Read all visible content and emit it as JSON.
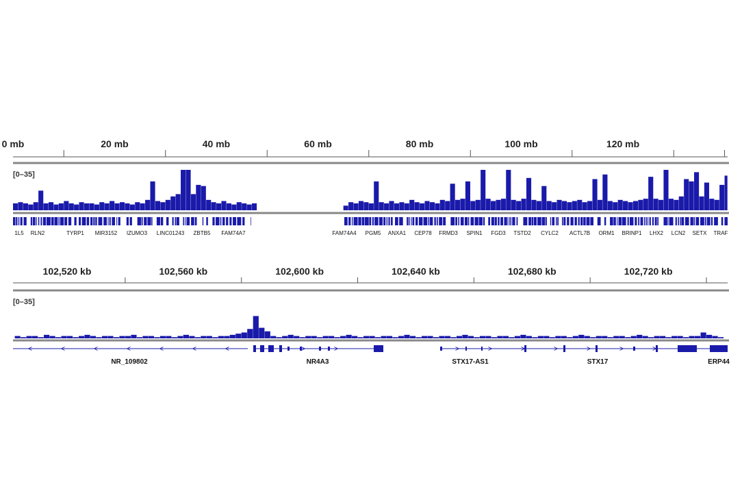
{
  "chart_data": [
    {
      "type": "bar",
      "range_label": "[0–35]",
      "color": "#1a1aaa",
      "xlim": [
        0,
        140.6
      ],
      "xticks": [
        {
          "value": 0,
          "label": "0 mb"
        },
        {
          "value": 20,
          "label": "20 mb"
        },
        {
          "value": 40,
          "label": "40 mb"
        },
        {
          "value": 60,
          "label": "60 mb"
        },
        {
          "value": 80,
          "label": "80 mb"
        },
        {
          "value": 100,
          "label": "100 mb"
        },
        {
          "value": 120,
          "label": "120 mb"
        }
      ],
      "minor_xticks": [
        10,
        30,
        50,
        70,
        90,
        110,
        130,
        140
      ],
      "ylim": [
        0,
        35
      ],
      "x": [
        0,
        1,
        2,
        3,
        4,
        5,
        6,
        7,
        8,
        9,
        10,
        11,
        12,
        13,
        14,
        15,
        16,
        17,
        18,
        19,
        20,
        21,
        22,
        23,
        24,
        25,
        26,
        27,
        28,
        29,
        30,
        31,
        32,
        33,
        34,
        35,
        36,
        37,
        38,
        39,
        40,
        41,
        42,
        43,
        44,
        45,
        46,
        47,
        48,
        49,
        50,
        51,
        52,
        53,
        54,
        55,
        56,
        57,
        58,
        59,
        60,
        61,
        62,
        63,
        64,
        65,
        66,
        67,
        68,
        69,
        70,
        71,
        72,
        73,
        74,
        75,
        76,
        77,
        78,
        79,
        80,
        81,
        82,
        83,
        84,
        85,
        86,
        87,
        88,
        89,
        90,
        91,
        92,
        93,
        94,
        95,
        96,
        97,
        98,
        99,
        100,
        101,
        102,
        103,
        104,
        105,
        106,
        107,
        108,
        109,
        110,
        111,
        112,
        113,
        114,
        115,
        116,
        117,
        118,
        119,
        120,
        121,
        122,
        123,
        124,
        125,
        126,
        127,
        128,
        129,
        130,
        131,
        132,
        133,
        134,
        135,
        136,
        137,
        138,
        139,
        140
      ],
      "values": [
        6,
        7,
        6,
        5,
        7,
        17,
        6,
        7,
        5,
        6,
        8,
        6,
        5,
        7,
        6,
        6,
        5,
        7,
        6,
        8,
        6,
        7,
        6,
        5,
        7,
        6,
        9,
        25,
        8,
        7,
        9,
        12,
        14,
        35,
        35,
        14,
        22,
        21,
        9,
        7,
        6,
        8,
        6,
        5,
        7,
        6,
        5,
        6,
        null,
        null,
        null,
        null,
        null,
        null,
        null,
        null,
        null,
        null,
        null,
        null,
        null,
        null,
        null,
        null,
        null,
        4,
        7,
        6,
        8,
        7,
        6,
        25,
        7,
        6,
        8,
        6,
        7,
        6,
        9,
        7,
        6,
        8,
        7,
        6,
        9,
        8,
        23,
        9,
        10,
        25,
        8,
        9,
        35,
        10,
        8,
        9,
        10,
        35,
        9,
        8,
        10,
        28,
        9,
        8,
        21,
        8,
        7,
        9,
        8,
        7,
        8,
        9,
        7,
        8,
        27,
        9,
        31,
        8,
        7,
        9,
        8,
        7,
        8,
        9,
        10,
        29,
        10,
        9,
        35,
        10,
        9,
        12,
        27,
        25,
        33,
        12,
        24,
        10,
        9,
        22,
        30
      ],
      "genes": [
        "1L5",
        "RLN2",
        "TYRP1",
        "MIR3152",
        "IZUMO3",
        "LINC01243",
        "ZBTB5",
        "FAM74A7",
        "FAM74A4",
        "PGM5",
        "ANXA1",
        "CEP78",
        "FRMD3",
        "SPIN1",
        "FGD3",
        "TSTD2",
        "CYLC2",
        "ACTL7B",
        "ORM1",
        "BRINP1",
        "LHX2",
        "LCN2",
        "SETX",
        "TRAF"
      ]
    },
    {
      "type": "bar",
      "range_label": "[0–35]",
      "color": "#1a1aaa",
      "xlim": [
        102501.4,
        102747.3
      ],
      "xticks": [
        {
          "value": 102520,
          "label": "102,520 kb"
        },
        {
          "value": 102560,
          "label": "102,560 kb"
        },
        {
          "value": 102600,
          "label": "102,600 kb"
        },
        {
          "value": 102640,
          "label": "102,640 kb"
        },
        {
          "value": 102680,
          "label": "102,680 kb"
        },
        {
          "value": 102720,
          "label": "102,720 kb"
        }
      ],
      "minor_xticks": [
        102540,
        102580,
        102620,
        102660,
        102700,
        102740
      ],
      "ylim": [
        0,
        35
      ],
      "x": [
        102502,
        102504,
        102506,
        102508,
        102510,
        102512,
        102514,
        102516,
        102518,
        102520,
        102522,
        102524,
        102526,
        102528,
        102530,
        102532,
        102534,
        102536,
        102538,
        102540,
        102542,
        102544,
        102546,
        102548,
        102550,
        102552,
        102554,
        102556,
        102558,
        102560,
        102562,
        102564,
        102566,
        102568,
        102570,
        102572,
        102574,
        102576,
        102578,
        102580,
        102582,
        102584,
        102586,
        102588,
        102590,
        102592,
        102594,
        102596,
        102598,
        102600,
        102602,
        102604,
        102606,
        102608,
        102610,
        102612,
        102614,
        102616,
        102618,
        102620,
        102622,
        102624,
        102626,
        102628,
        102630,
        102632,
        102634,
        102636,
        102638,
        102640,
        102642,
        102644,
        102646,
        102648,
        102650,
        102652,
        102654,
        102656,
        102658,
        102660,
        102662,
        102664,
        102666,
        102668,
        102670,
        102672,
        102674,
        102676,
        102678,
        102680,
        102682,
        102684,
        102686,
        102688,
        102690,
        102692,
        102694,
        102696,
        102698,
        102700,
        102702,
        102704,
        102706,
        102708,
        102710,
        102712,
        102714,
        102716,
        102718,
        102720,
        102722,
        102724,
        102726,
        102728,
        102730,
        102732,
        102734,
        102736,
        102738,
        102740,
        102742,
        102744
      ],
      "values": [
        2,
        1,
        2,
        2,
        1,
        3,
        2,
        1,
        2,
        2,
        1,
        2,
        3,
        2,
        1,
        2,
        2,
        1,
        2,
        2,
        3,
        1,
        2,
        2,
        1,
        2,
        2,
        1,
        2,
        3,
        2,
        1,
        2,
        2,
        1,
        2,
        2,
        3,
        4,
        5,
        8,
        19,
        9,
        6,
        2,
        1,
        2,
        3,
        2,
        1,
        2,
        2,
        1,
        2,
        2,
        1,
        2,
        3,
        2,
        1,
        2,
        2,
        1,
        2,
        2,
        1,
        2,
        3,
        2,
        1,
        2,
        2,
        1,
        2,
        2,
        1,
        2,
        3,
        2,
        1,
        2,
        2,
        1,
        2,
        2,
        1,
        2,
        3,
        2,
        1,
        2,
        2,
        1,
        2,
        2,
        1,
        2,
        3,
        2,
        1,
        2,
        2,
        1,
        2,
        2,
        1,
        2,
        3,
        2,
        1,
        2,
        2,
        1,
        2,
        2,
        1,
        2,
        2,
        5,
        3,
        2,
        1
      ],
      "genes": [
        "NR_109802",
        "NR4A3",
        "STX17-AS1",
        "STX17",
        "ERP44"
      ]
    }
  ]
}
